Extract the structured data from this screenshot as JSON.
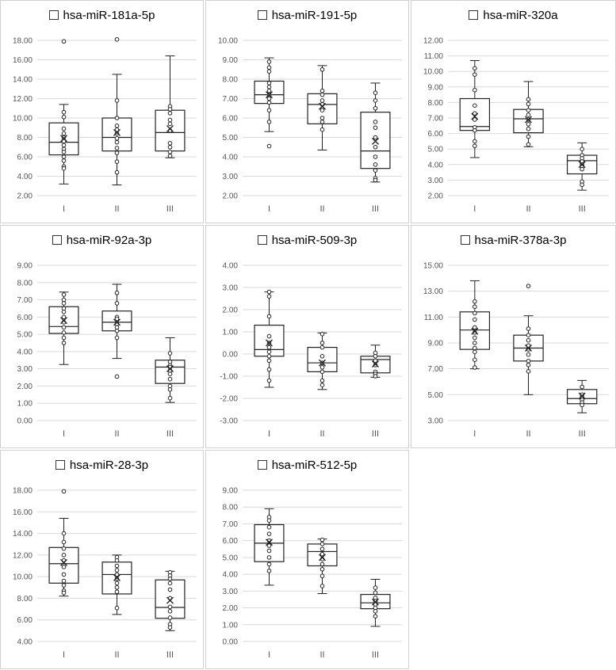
{
  "chart_data": [
    {
      "type": "boxplot",
      "title": "hsa-miR-181a-5p",
      "categories": [
        "I",
        "II",
        "III"
      ],
      "ylim": [
        2,
        18
      ],
      "yticks": [
        "2.00",
        "4.00",
        "6.00",
        "8.00",
        "10.00",
        "12.00",
        "14.00",
        "16.00",
        "18.00"
      ],
      "grid": true,
      "boxes": [
        {
          "min": 3.2,
          "q1": 6.2,
          "median": 7.5,
          "q3": 9.5,
          "max": 11.4,
          "mean": 7.9,
          "points": [
            17.9,
            10.6,
            10.1,
            8.9,
            8.4,
            8.0,
            7.6,
            7.2,
            6.8,
            6.5,
            6.0,
            5.6,
            5.0,
            4.8
          ]
        },
        {
          "min": 3.1,
          "q1": 6.6,
          "median": 8.0,
          "q3": 10.0,
          "max": 14.5,
          "mean": 8.5,
          "points": [
            18.1,
            11.8,
            10.0,
            9.2,
            8.8,
            8.4,
            7.9,
            7.5,
            6.9,
            6.4,
            5.5,
            4.4
          ]
        },
        {
          "min": 5.9,
          "q1": 6.6,
          "median": 8.5,
          "q3": 10.8,
          "max": 16.4,
          "mean": 8.9,
          "points": [
            11.2,
            10.9,
            10.5,
            9.8,
            9.4,
            8.7,
            7.4,
            7.0,
            6.5,
            6.1
          ]
        }
      ]
    },
    {
      "type": "boxplot",
      "title": "hsa-miR-191-5p",
      "categories": [
        "I",
        "II",
        "III"
      ],
      "ylim": [
        2,
        10
      ],
      "yticks": [
        "2.00",
        "3.00",
        "4.00",
        "5.00",
        "6.00",
        "7.00",
        "8.00",
        "9.00",
        "10.00"
      ],
      "grid": true,
      "boxes": [
        {
          "min": 5.3,
          "q1": 6.75,
          "median": 7.2,
          "q3": 7.9,
          "max": 9.1,
          "mean": 7.2,
          "points": [
            8.9,
            8.6,
            8.4,
            7.8,
            7.6,
            7.4,
            7.2,
            7.0,
            6.8,
            6.4,
            5.8,
            4.55
          ]
        },
        {
          "min": 4.35,
          "q1": 5.7,
          "median": 6.7,
          "q3": 7.25,
          "max": 8.7,
          "mean": 6.6,
          "points": [
            8.5,
            7.4,
            7.2,
            6.9,
            6.7,
            6.4,
            6.0,
            5.8,
            5.4
          ]
        },
        {
          "min": 2.7,
          "q1": 3.4,
          "median": 4.3,
          "q3": 6.3,
          "max": 7.8,
          "mean": 4.8,
          "points": [
            7.3,
            6.9,
            6.5,
            5.8,
            5.5,
            5.0,
            4.5,
            4.0,
            3.6,
            3.3,
            2.9,
            2.8
          ]
        }
      ]
    },
    {
      "type": "boxplot",
      "title": "hsa-miR-320a",
      "categories": [
        "I",
        "II",
        "III"
      ],
      "ylim": [
        2,
        12
      ],
      "yticks": [
        "2.00",
        "3.00",
        "4.00",
        "5.00",
        "6.00",
        "7.00",
        "8.00",
        "9.00",
        "10.00",
        "11.00",
        "12.00"
      ],
      "grid": true,
      "boxes": [
        {
          "min": 4.45,
          "q1": 6.2,
          "median": 6.45,
          "q3": 8.25,
          "max": 10.7,
          "mean": 7.1,
          "points": [
            10.2,
            9.8,
            8.8,
            7.8,
            7.3,
            6.9,
            6.4,
            6.2,
            5.5,
            5.2
          ]
        },
        {
          "min": 5.15,
          "q1": 6.05,
          "median": 6.95,
          "q3": 7.55,
          "max": 9.35,
          "mean": 6.9,
          "points": [
            8.2,
            7.9,
            7.5,
            7.2,
            6.9,
            6.6,
            6.3,
            5.8,
            5.3
          ]
        },
        {
          "min": 2.35,
          "q1": 3.4,
          "median": 4.25,
          "q3": 4.6,
          "max": 5.4,
          "mean": 4.0,
          "points": [
            5.0,
            4.6,
            4.4,
            4.2,
            4.0,
            3.9,
            3.7,
            2.9,
            2.7
          ]
        }
      ]
    },
    {
      "type": "boxplot",
      "title": "hsa-miR-92a-3p",
      "categories": [
        "I",
        "II",
        "III"
      ],
      "ylim": [
        0,
        9
      ],
      "yticks": [
        "0.00",
        "1.00",
        "2.00",
        "3.00",
        "4.00",
        "5.00",
        "6.00",
        "7.00",
        "8.00",
        "9.00"
      ],
      "grid": true,
      "boxes": [
        {
          "min": 3.25,
          "q1": 5.05,
          "median": 5.45,
          "q3": 6.6,
          "max": 7.45,
          "mean": 5.8,
          "points": [
            7.3,
            7.0,
            6.8,
            6.5,
            6.3,
            6.0,
            5.7,
            5.4,
            5.1,
            4.8,
            4.5
          ]
        },
        {
          "min": 3.6,
          "q1": 5.2,
          "median": 5.7,
          "q3": 6.35,
          "max": 7.9,
          "mean": 5.7,
          "points": [
            7.4,
            6.8,
            6.0,
            5.9,
            5.6,
            5.4,
            5.2,
            4.8,
            2.55
          ]
        },
        {
          "min": 1.05,
          "q1": 2.15,
          "median": 3.1,
          "q3": 3.5,
          "max": 4.8,
          "mean": 3.0,
          "points": [
            3.9,
            3.4,
            3.2,
            3.1,
            2.9,
            2.7,
            2.4,
            2.0,
            1.8,
            1.3
          ]
        }
      ]
    },
    {
      "type": "boxplot",
      "title": "hsa-miR-509-3p",
      "categories": [
        "I",
        "II",
        "III"
      ],
      "ylim": [
        -3,
        4
      ],
      "yticks": [
        "-3.00",
        "-2.00",
        "-1.00",
        "0.00",
        "1.00",
        "2.00",
        "3.00",
        "4.00"
      ],
      "grid": true,
      "boxes": [
        {
          "min": -1.5,
          "q1": -0.1,
          "median": 0.2,
          "q3": 1.3,
          "max": 2.8,
          "mean": 0.5,
          "points": [
            2.8,
            2.6,
            1.7,
            0.8,
            0.5,
            0.3,
            0.1,
            -0.1,
            -0.3,
            -0.7,
            -1.2
          ]
        },
        {
          "min": -1.6,
          "q1": -0.8,
          "median": -0.4,
          "q3": 0.3,
          "max": 0.95,
          "mean": -0.4,
          "points": [
            0.9,
            0.5,
            0.3,
            -0.1,
            -0.4,
            -0.6,
            -0.8,
            -1.2,
            -1.4
          ]
        },
        {
          "min": -1.05,
          "q1": -0.85,
          "median": -0.25,
          "q3": -0.1,
          "max": 0.4,
          "mean": -0.45,
          "points": [
            0.05,
            -0.1,
            -0.3,
            -0.5,
            -0.8,
            -0.9,
            -1.0
          ]
        }
      ]
    },
    {
      "type": "boxplot",
      "title": "hsa-miR-378a-3p",
      "categories": [
        "I",
        "II",
        "III"
      ],
      "ylim": [
        3,
        15
      ],
      "yticks": [
        "3.00",
        "5.00",
        "7.00",
        "9.00",
        "11.00",
        "13.00",
        "15.00"
      ],
      "grid": true,
      "boxes": [
        {
          "min": 7.0,
          "q1": 8.5,
          "median": 10.0,
          "q3": 11.4,
          "max": 13.8,
          "mean": 9.9,
          "points": [
            12.2,
            11.8,
            11.3,
            10.8,
            10.2,
            9.8,
            9.4,
            9.0,
            8.6,
            8.3,
            7.7,
            7.1
          ]
        },
        {
          "min": 5.0,
          "q1": 7.6,
          "median": 8.6,
          "q3": 9.6,
          "max": 11.1,
          "mean": 8.6,
          "points": [
            13.4,
            10.1,
            9.6,
            9.2,
            8.8,
            8.5,
            8.1,
            7.6,
            7.3,
            6.8
          ]
        },
        {
          "min": 3.6,
          "q1": 4.3,
          "median": 4.7,
          "q3": 5.4,
          "max": 6.1,
          "mean": 4.9,
          "points": [
            5.6,
            5.0,
            4.8,
            4.6,
            4.4,
            4.2
          ]
        }
      ]
    },
    {
      "type": "boxplot",
      "title": "hsa-miR-28-3p",
      "categories": [
        "I",
        "II",
        "III"
      ],
      "ylim": [
        4,
        18
      ],
      "yticks": [
        "4.00",
        "6.00",
        "8.00",
        "10.00",
        "12.00",
        "14.00",
        "16.00",
        "18.00"
      ],
      "grid": true,
      "boxes": [
        {
          "min": 8.2,
          "q1": 9.4,
          "median": 11.2,
          "q3": 12.7,
          "max": 15.4,
          "mean": 11.3,
          "points": [
            17.9,
            14.0,
            13.2,
            12.6,
            12.0,
            11.5,
            10.9,
            10.2,
            9.6,
            9.2,
            8.7,
            8.5
          ]
        },
        {
          "min": 6.5,
          "q1": 8.4,
          "median": 10.2,
          "q3": 11.35,
          "max": 12.0,
          "mean": 9.9,
          "points": [
            11.8,
            11.5,
            11.0,
            10.6,
            10.2,
            9.8,
            9.4,
            9.0,
            8.6,
            7.1
          ]
        },
        {
          "min": 5.0,
          "q1": 6.15,
          "median": 7.15,
          "q3": 9.7,
          "max": 10.5,
          "mean": 7.8,
          "points": [
            10.4,
            10.1,
            9.8,
            9.4,
            8.8,
            8.0,
            7.2,
            6.8,
            6.2,
            5.6,
            5.3
          ]
        }
      ]
    },
    {
      "type": "boxplot",
      "title": "hsa-miR-512-5p",
      "categories": [
        "I",
        "II",
        "III"
      ],
      "ylim": [
        0,
        9
      ],
      "yticks": [
        "0.00",
        "1.00",
        "2.00",
        "3.00",
        "4.00",
        "5.00",
        "6.00",
        "7.00",
        "8.00",
        "9.00"
      ],
      "grid": true,
      "boxes": [
        {
          "min": 3.35,
          "q1": 4.75,
          "median": 5.85,
          "q3": 6.95,
          "max": 7.9,
          "mean": 5.9,
          "points": [
            7.4,
            7.2,
            6.8,
            6.4,
            6.0,
            5.7,
            5.4,
            5.0,
            4.6,
            4.2
          ]
        },
        {
          "min": 2.85,
          "q1": 4.5,
          "median": 5.35,
          "q3": 5.8,
          "max": 6.1,
          "mean": 5.0,
          "points": [
            6.05,
            5.8,
            5.5,
            5.2,
            4.9,
            4.6,
            4.3,
            3.9,
            3.3
          ]
        },
        {
          "min": 0.9,
          "q1": 1.95,
          "median": 2.3,
          "q3": 2.8,
          "max": 3.7,
          "mean": 2.35,
          "points": [
            3.2,
            2.9,
            2.6,
            2.4,
            2.2,
            2.0,
            1.8,
            1.5
          ]
        }
      ]
    }
  ]
}
